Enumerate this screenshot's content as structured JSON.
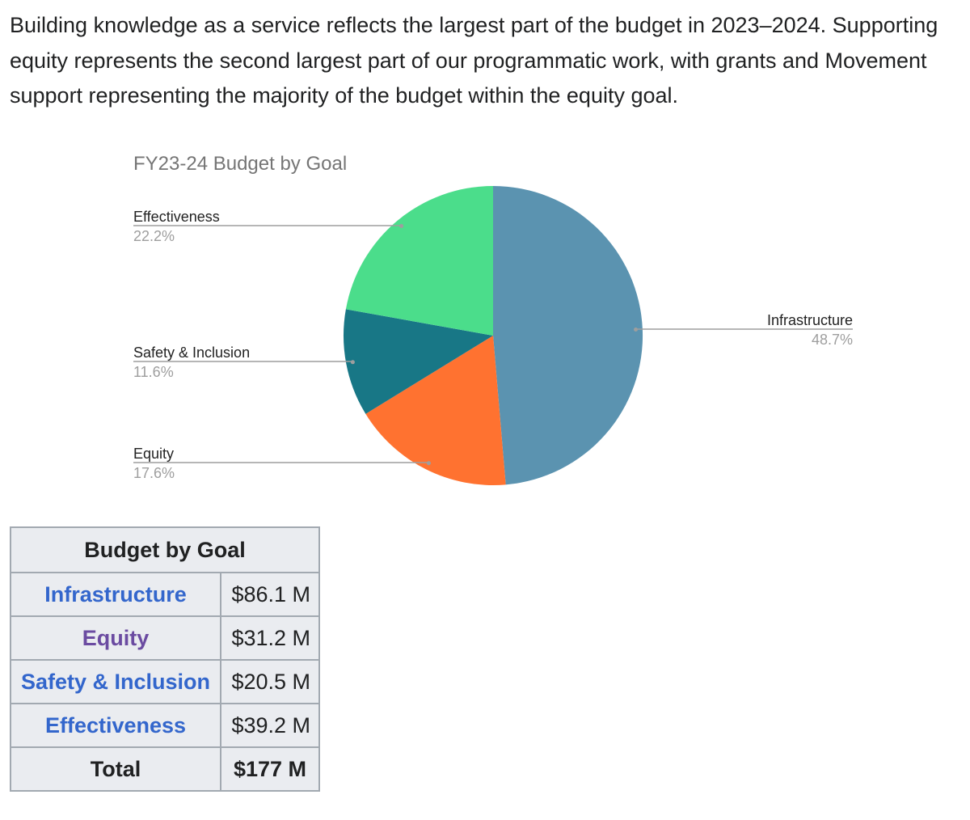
{
  "intro_text": "Building knowledge as a service reflects the largest part of the budget in 2023–2024. Supporting equity represents the second largest part of our programmatic work, with grants and Movement support representing the majority of the budget within the equity goal.",
  "chart_data": {
    "type": "pie",
    "title": "FY23-24 Budget by Goal",
    "slices": [
      {
        "label": "Infrastructure",
        "value": 48.7,
        "display": "48.7%",
        "color": "#5b93b0"
      },
      {
        "label": "Equity",
        "value": 17.6,
        "display": "17.6%",
        "color": "#ff7230"
      },
      {
        "label": "Safety & Inclusion",
        "value": 11.6,
        "display": "11.6%",
        "color": "#187786"
      },
      {
        "label": "Effectiveness",
        "value": 22.2,
        "display": "22.2%",
        "color": "#4bdd8b"
      }
    ]
  },
  "table": {
    "caption": "Budget by Goal",
    "rows": [
      {
        "goal": "Infrastructure",
        "amount": "$86.1 M"
      },
      {
        "goal": "Equity",
        "amount": "$31.2 M"
      },
      {
        "goal": "Safety & Inclusion",
        "amount": "$20.5 M"
      },
      {
        "goal": "Effectiveness",
        "amount": "$39.2 M"
      }
    ],
    "total_label": "Total",
    "total_amount": "$177 M"
  }
}
